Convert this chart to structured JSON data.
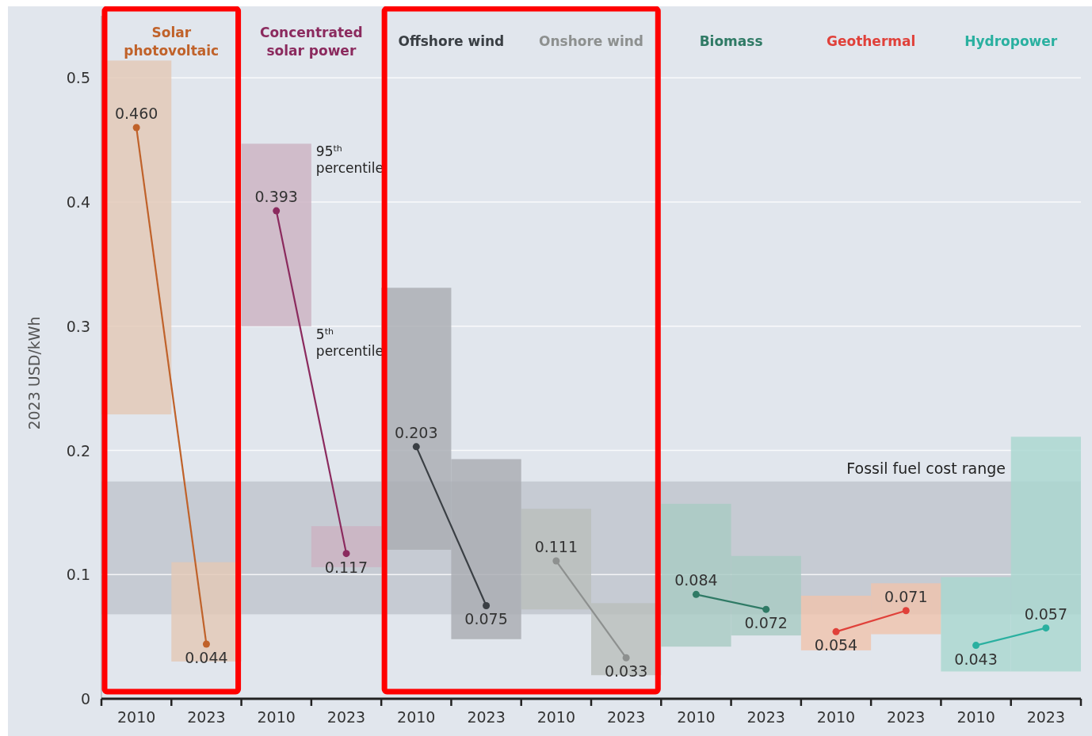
{
  "chart_data": {
    "type": "bar",
    "ylabel": "2023 USD/kWh",
    "categories": [
      "2010",
      "2023",
      "2010",
      "2023",
      "2010",
      "2023",
      "2010",
      "2023",
      "2010",
      "2023",
      "2010",
      "2023",
      "2010",
      "2023"
    ],
    "ylim": [
      0,
      0.55
    ],
    "yticks": [
      0,
      0.1,
      0.2,
      0.3,
      0.4,
      0.5
    ],
    "grid": "y",
    "marker": "circle",
    "series": [
      {
        "base": [
          0.229,
          0.03,
          0.3,
          0.106,
          0.12,
          0.048,
          0.072,
          0.019,
          0.042,
          0.051,
          0.039,
          0.052,
          0.022,
          0.022
        ],
        "values": [
          0.285,
          0.08,
          0.147,
          0.033,
          0.211,
          0.145,
          0.081,
          0.058,
          0.115,
          0.064,
          0.044,
          0.041,
          0.076,
          0.189
        ],
        "colors": [
          "#e3c8b6",
          "#e3c8b6",
          "#ccb2c2",
          "#ccb2c2",
          "#a9acb2",
          "#a9acb2",
          "#b9bebc",
          "#b9bebc",
          "#a8cbc3",
          "#a8cbc3",
          "#efc3ad",
          "#efc3ad",
          "#a9d7cf",
          "#a9d7cf"
        ]
      },
      {
        "type": "line",
        "name": "Solar photovoltaic",
        "color": "#c0622a",
        "values": [
          0.46,
          0.044,
          null,
          null,
          null,
          null,
          null,
          null,
          null,
          null,
          null,
          null,
          null,
          null
        ],
        "value_labels": [
          "0.460",
          "0.044",
          null,
          null,
          null,
          null,
          null,
          null,
          null,
          null,
          null,
          null,
          null,
          null
        ]
      },
      {
        "type": "line",
        "name": "Concentrated solar power",
        "color": "#8b2a5e",
        "values": [
          null,
          null,
          0.393,
          0.117,
          null,
          null,
          null,
          null,
          null,
          null,
          null,
          null,
          null,
          null
        ],
        "value_labels": [
          null,
          null,
          "0.393",
          "0.117",
          null,
          null,
          null,
          null,
          null,
          null,
          null,
          null,
          null,
          null
        ]
      },
      {
        "type": "line",
        "name": "Offshore wind",
        "color": "#3a3f44",
        "values": [
          null,
          null,
          null,
          null,
          0.203,
          0.075,
          null,
          null,
          null,
          null,
          null,
          null,
          null,
          null
        ],
        "value_labels": [
          null,
          null,
          null,
          null,
          "0.203",
          "0.075",
          null,
          null,
          null,
          null,
          null,
          null,
          null,
          null
        ]
      },
      {
        "type": "line",
        "name": "Onshore wind",
        "color": "#8d908f",
        "values": [
          null,
          null,
          null,
          null,
          null,
          null,
          0.111,
          0.033,
          null,
          null,
          null,
          null,
          null,
          null
        ],
        "value_labels": [
          null,
          null,
          null,
          null,
          null,
          null,
          "0.111",
          "0.033",
          null,
          null,
          null,
          null,
          null,
          null
        ]
      },
      {
        "type": "line",
        "name": "Biomass",
        "color": "#2f7a65",
        "values": [
          null,
          null,
          null,
          null,
          null,
          null,
          null,
          null,
          0.084,
          0.072,
          null,
          null,
          null,
          null
        ],
        "value_labels": [
          null,
          null,
          null,
          null,
          null,
          null,
          null,
          null,
          "0.084",
          "0.072",
          null,
          null,
          null,
          null
        ]
      },
      {
        "type": "line",
        "name": "Geothermal",
        "color": "#e0413a",
        "values": [
          null,
          null,
          null,
          null,
          null,
          null,
          null,
          null,
          null,
          null,
          0.054,
          0.071,
          null,
          null
        ],
        "value_labels": [
          null,
          null,
          null,
          null,
          null,
          null,
          null,
          null,
          null,
          null,
          "0.054",
          "0.071",
          null,
          null
        ]
      },
      {
        "type": "line",
        "name": "Hydropower",
        "color": "#2ab0a0",
        "values": [
          null,
          null,
          null,
          null,
          null,
          null,
          null,
          null,
          null,
          null,
          null,
          null,
          0.043,
          0.057
        ],
        "value_labels": [
          null,
          null,
          null,
          null,
          null,
          null,
          null,
          null,
          null,
          null,
          null,
          null,
          "0.043",
          "0.057"
        ]
      }
    ],
    "bands": [
      {
        "axis": "y",
        "from": 0.068,
        "to": 0.175,
        "label": "Fossil fuel cost range",
        "color": "#c6cbd3"
      }
    ],
    "annotations": [
      "95$^{th}$ percentile",
      "5$^{th}$ percentile"
    ]
  }
}
